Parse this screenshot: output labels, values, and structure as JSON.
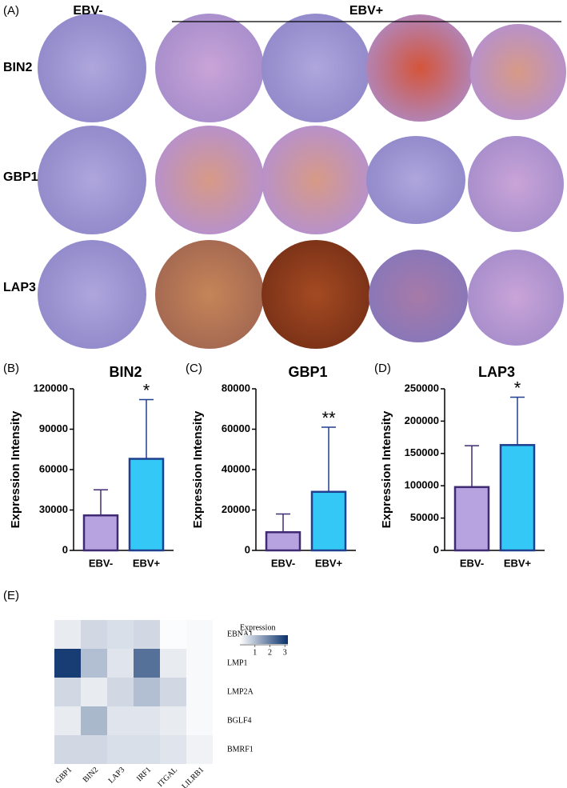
{
  "panel_a": {
    "label": "(A)",
    "columns": [
      "EBV-",
      "EBV+"
    ],
    "rows": [
      "BIN2",
      "GBP1",
      "LAP3"
    ]
  },
  "chart_data": [
    {
      "type": "bar",
      "panel": "(B)",
      "title": "BIN2",
      "ylabel": "Expression Intensity",
      "categories": [
        "EBV-",
        "EBV+"
      ],
      "values": [
        26000,
        68000
      ],
      "errors": [
        19000,
        44000
      ],
      "colors": [
        "#b7a3e0",
        "#33c8f5"
      ],
      "edge_colors": [
        "#3f2a73",
        "#1f3f8f"
      ],
      "ylim": [
        0,
        120000
      ],
      "yticks": [
        0,
        30000,
        60000,
        90000,
        120000
      ],
      "annotations": [
        {
          "category": "EBV+",
          "text": "*"
        }
      ]
    },
    {
      "type": "bar",
      "panel": "(C)",
      "title": "GBP1",
      "ylabel": "Expression Intensity",
      "categories": [
        "EBV-",
        "EBV+"
      ],
      "values": [
        9000,
        29000
      ],
      "errors": [
        9000,
        32000
      ],
      "colors": [
        "#b7a3e0",
        "#33c8f5"
      ],
      "edge_colors": [
        "#3f2a73",
        "#1f3f8f"
      ],
      "ylim": [
        0,
        80000
      ],
      "yticks": [
        0,
        20000,
        40000,
        60000,
        80000
      ],
      "annotations": [
        {
          "category": "EBV+",
          "text": "**"
        }
      ]
    },
    {
      "type": "bar",
      "panel": "(D)",
      "title": "LAP3",
      "ylabel": "Expression Intensity",
      "categories": [
        "EBV-",
        "EBV+"
      ],
      "values": [
        98000,
        163000
      ],
      "errors": [
        64000,
        74000
      ],
      "colors": [
        "#b7a3e0",
        "#33c8f5"
      ],
      "edge_colors": [
        "#3f2a73",
        "#1f3f8f"
      ],
      "ylim": [
        0,
        250000
      ],
      "yticks": [
        0,
        50000,
        100000,
        150000,
        200000,
        250000
      ],
      "annotations": [
        {
          "category": "EBV+",
          "text": "*"
        }
      ]
    },
    {
      "type": "heatmap",
      "panel": "(E)",
      "legend_title": "Expression",
      "x": [
        "GBP1",
        "BIN2",
        "LAP3",
        "IRF1",
        "ITGAL",
        "LILRB1"
      ],
      "y": [
        "EBNA1",
        "LMP1",
        "LMP2A",
        "BGLF4",
        "BMRF1"
      ],
      "values": [
        [
          0.3,
          0.6,
          0.5,
          0.6,
          0.05,
          0.1
        ],
        [
          3.0,
          1.0,
          0.4,
          2.2,
          0.3,
          0.1
        ],
        [
          0.6,
          0.3,
          0.6,
          1.0,
          0.6,
          0.1
        ],
        [
          0.3,
          1.1,
          0.4,
          0.4,
          0.3,
          0.1
        ],
        [
          0.6,
          0.6,
          0.5,
          0.5,
          0.4,
          0.2
        ]
      ],
      "zlim": [
        0,
        3.2
      ],
      "zticks": [
        1,
        2,
        3
      ],
      "colors": [
        "#ffffff",
        "#08306b"
      ]
    }
  ]
}
